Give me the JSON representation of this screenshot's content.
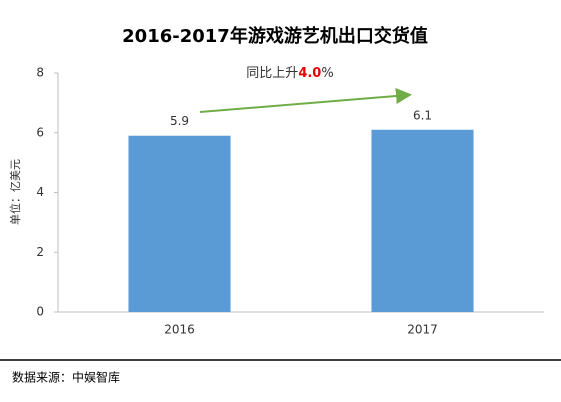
{
  "chart_data": {
    "type": "bar",
    "title": "2016-2017年游戏游艺机出口交货值",
    "y_label": "单位：亿美元",
    "annotation": {
      "prefix": "同比上升",
      "highlight": "4.0",
      "suffix": "%"
    },
    "categories": [
      "2016",
      "2017"
    ],
    "values": [
      5.9,
      6.1
    ],
    "color": "#5b9bd5",
    "ylim": [
      0,
      8
    ],
    "yticks": [
      0,
      2,
      4,
      6,
      8
    ],
    "grid": false,
    "source": "数据来源：中娱智库"
  }
}
